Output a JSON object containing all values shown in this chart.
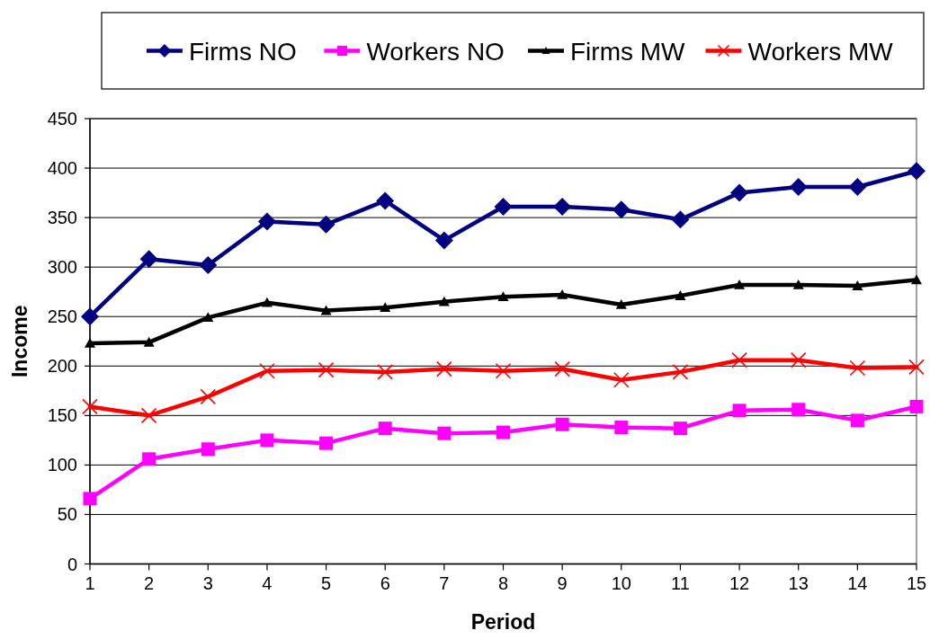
{
  "chart_data": {
    "type": "line",
    "xlabel": "Period",
    "ylabel": "Income",
    "x": [
      1,
      2,
      3,
      4,
      5,
      6,
      7,
      8,
      9,
      10,
      11,
      12,
      13,
      14,
      15
    ],
    "series": [
      {
        "name": "Firms NO",
        "color": "#000080",
        "marker": "diamond",
        "values": [
          250,
          308,
          302,
          346,
          343,
          367,
          327,
          361,
          361,
          358,
          348,
          375,
          381,
          381,
          397
        ]
      },
      {
        "name": "Workers NO",
        "color": "#ff00ff",
        "marker": "square",
        "values": [
          66,
          106,
          116,
          125,
          122,
          137,
          132,
          133,
          141,
          138,
          137,
          155,
          156,
          145,
          159
        ]
      },
      {
        "name": "Firms MW",
        "color": "#000000",
        "marker": "triangle",
        "values": [
          223,
          224,
          249,
          264,
          256,
          259,
          265,
          270,
          272,
          262,
          271,
          282,
          282,
          281,
          287
        ]
      },
      {
        "name": "Workers MW",
        "color": "#ff0000",
        "marker": "cross",
        "values": [
          159,
          150,
          169,
          195,
          196,
          194,
          197,
          195,
          197,
          186,
          194,
          206,
          206,
          198,
          199
        ]
      }
    ],
    "xlim": [
      1,
      15
    ],
    "xticks": [
      1,
      2,
      3,
      4,
      5,
      6,
      7,
      8,
      9,
      10,
      11,
      12,
      13,
      14,
      15
    ],
    "ylim": [
      0,
      450
    ],
    "yticks": [
      0,
      50,
      100,
      150,
      200,
      250,
      300,
      350,
      400,
      450
    ],
    "grid": "y",
    "legend": "top",
    "line_style": "solid"
  }
}
